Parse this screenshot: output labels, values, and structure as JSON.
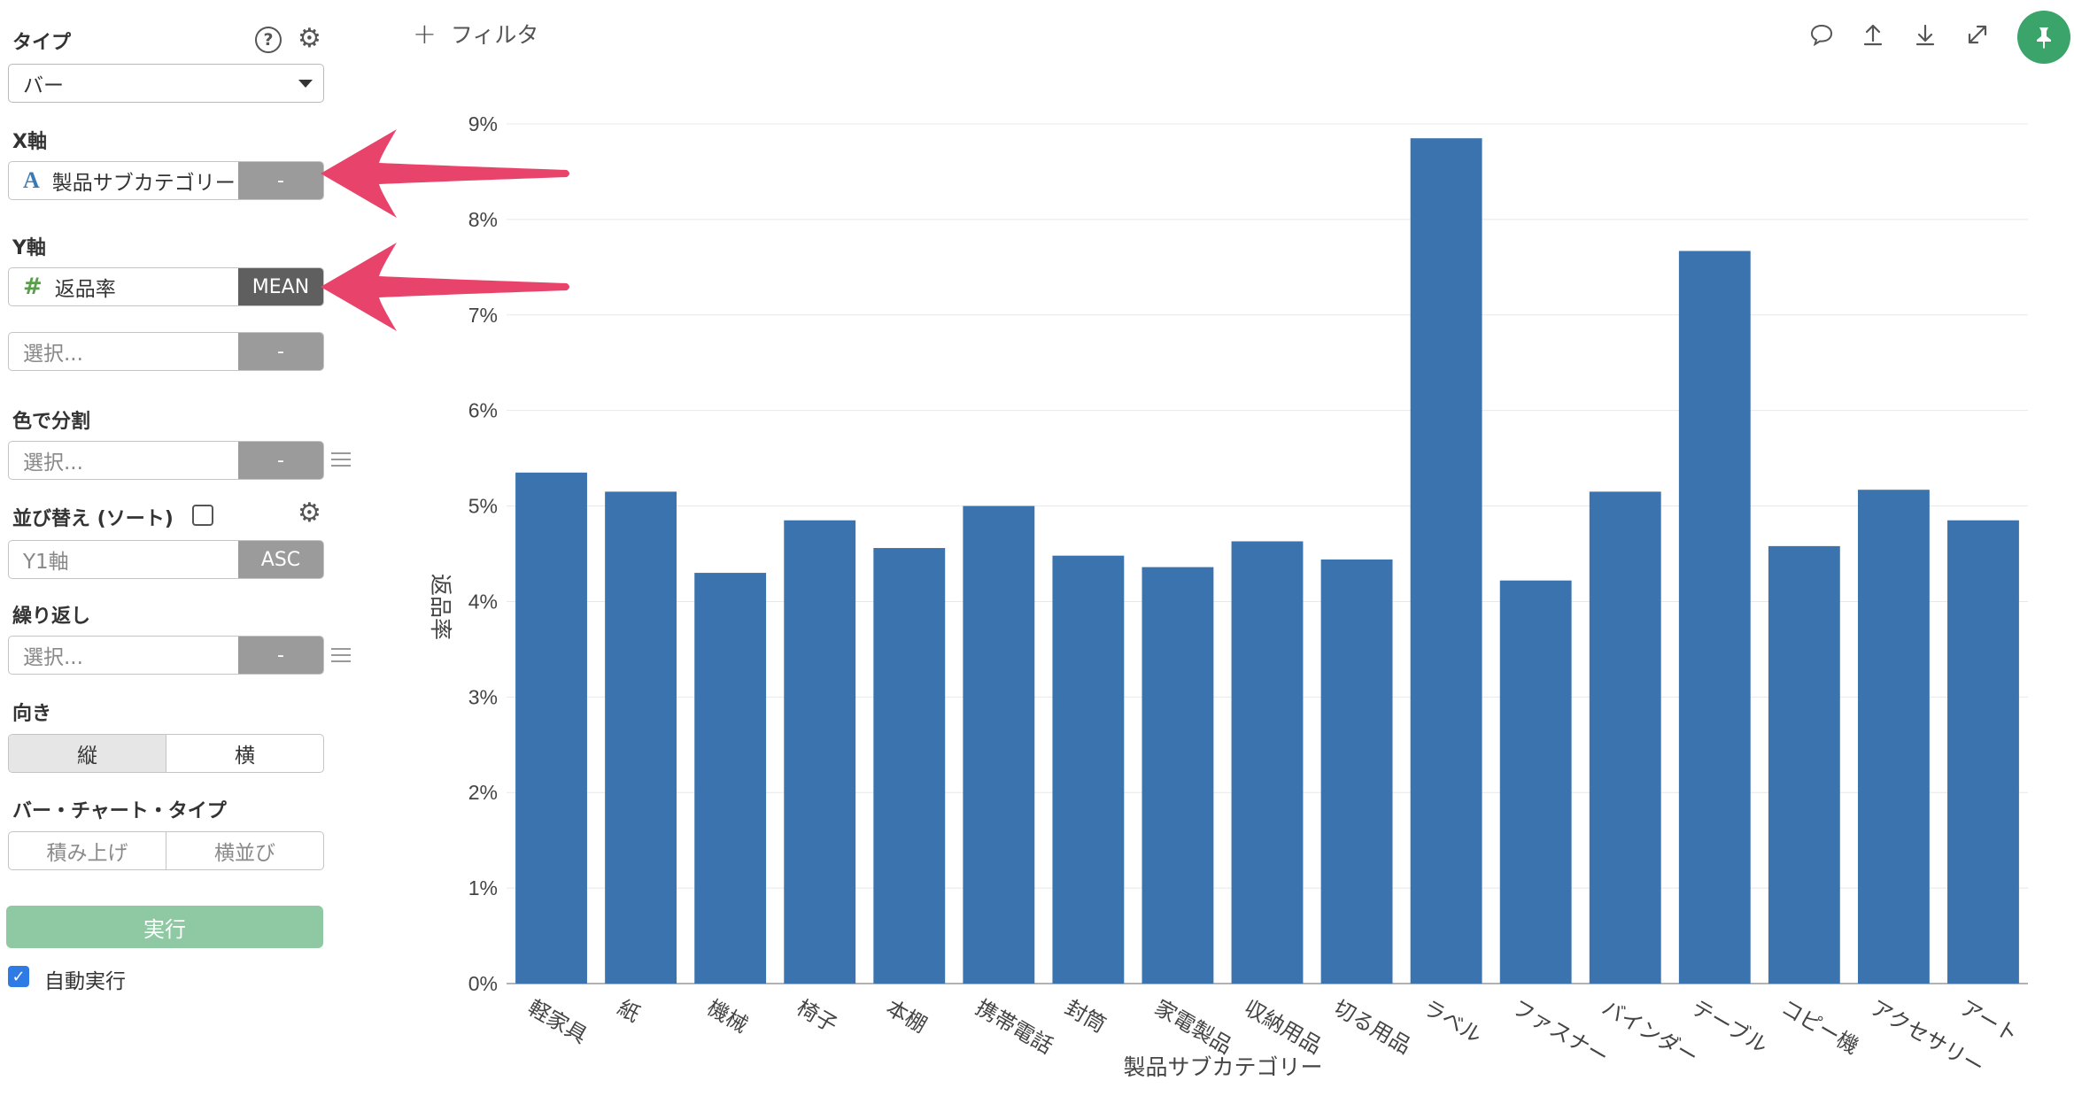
{
  "panel": {
    "type": {
      "label": "タイプ",
      "value": "バー"
    },
    "x_axis": {
      "label": "X軸",
      "column": "製品サブカテゴリー",
      "column_icon": "A",
      "agg": "-"
    },
    "y_axis": {
      "label": "Y軸",
      "column": "返品率",
      "column_icon": "#",
      "agg": "MEAN",
      "extra_placeholder": "選択...",
      "extra_agg": "-"
    },
    "color_split": {
      "label": "色で分割",
      "placeholder": "選択...",
      "agg": "-"
    },
    "sort": {
      "label": "並び替え (ソート)",
      "value": "Y1軸",
      "order": "ASC"
    },
    "repeat": {
      "label": "繰り返し",
      "placeholder": "選択...",
      "agg": "-"
    },
    "orientation": {
      "label": "向き",
      "options": [
        "縦",
        "横"
      ],
      "selected": "縦"
    },
    "bar_type": {
      "label": "バー・チャート・タイプ",
      "options": [
        "積み上げ",
        "横並び"
      ]
    },
    "run_label": "実行",
    "auto_run": {
      "label": "自動実行",
      "checked": true
    },
    "help_symbol": "?"
  },
  "toolbar": {
    "filter_plus": "+",
    "filter_label": "フィルタ",
    "icons": [
      "comment-icon",
      "upload-icon",
      "download-icon",
      "expand-icon",
      "pin-icon"
    ]
  },
  "colors": {
    "bar": "#3a73ae",
    "arrow": "#e8436b",
    "run_button": "#8fc9a3",
    "pin_button": "#3aa46a"
  },
  "chart_data": {
    "type": "bar",
    "categories": [
      "軽家具",
      "紙",
      "機械",
      "椅子",
      "本棚",
      "携帯電話",
      "封筒",
      "家電製品",
      "収納用品",
      "切る用品",
      "ラベル",
      "ファスナー",
      "バインダー",
      "テーブル",
      "コピー機",
      "アクセサリー",
      "アート"
    ],
    "values": [
      5.35,
      5.15,
      4.3,
      4.85,
      4.56,
      5.0,
      4.48,
      4.36,
      4.63,
      4.44,
      8.85,
      4.22,
      5.15,
      7.67,
      4.58,
      5.17,
      4.85
    ],
    "ylim": [
      0,
      9
    ],
    "yticks": [
      "0%",
      "1%",
      "2%",
      "3%",
      "4%",
      "5%",
      "6%",
      "7%",
      "8%",
      "9%"
    ],
    "xlabel": "製品サブカテゴリー",
    "ylabel": "返品率",
    "grid": true
  }
}
